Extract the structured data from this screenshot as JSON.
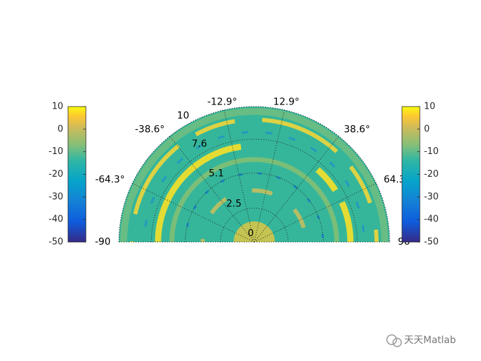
{
  "chart_data": {
    "type": "polar-heatmap",
    "thetalim": [
      -90,
      90
    ],
    "theta_ticks": [
      -90,
      {
        "value": -64.3,
        "label": "-64.3°"
      },
      {
        "value": -38.6,
        "label": "-38.6°"
      },
      {
        "value": -12.9,
        "label": "-12.9°"
      },
      {
        "value": 12.9,
        "label": "12.9°"
      },
      {
        "value": 38.6,
        "label": "38.6°"
      },
      {
        "value": 64.3,
        "label": "64.3°"
      },
      90
    ],
    "rlim": [
      0,
      10
    ],
    "r_ticks": [
      0,
      2.5,
      5.1,
      7.6,
      10
    ],
    "colorbars": [
      {
        "clim": [
          -50,
          10
        ],
        "ticks": [
          10,
          0,
          -10,
          -20,
          -30,
          -40,
          -50
        ],
        "colormap": "parula"
      },
      {
        "clim": [
          -50,
          10
        ],
        "ticks": [
          10,
          0,
          -10,
          -20,
          -30,
          -40,
          -50
        ],
        "colormap": "parula"
      }
    ]
  },
  "watermark": "天天Matlab"
}
